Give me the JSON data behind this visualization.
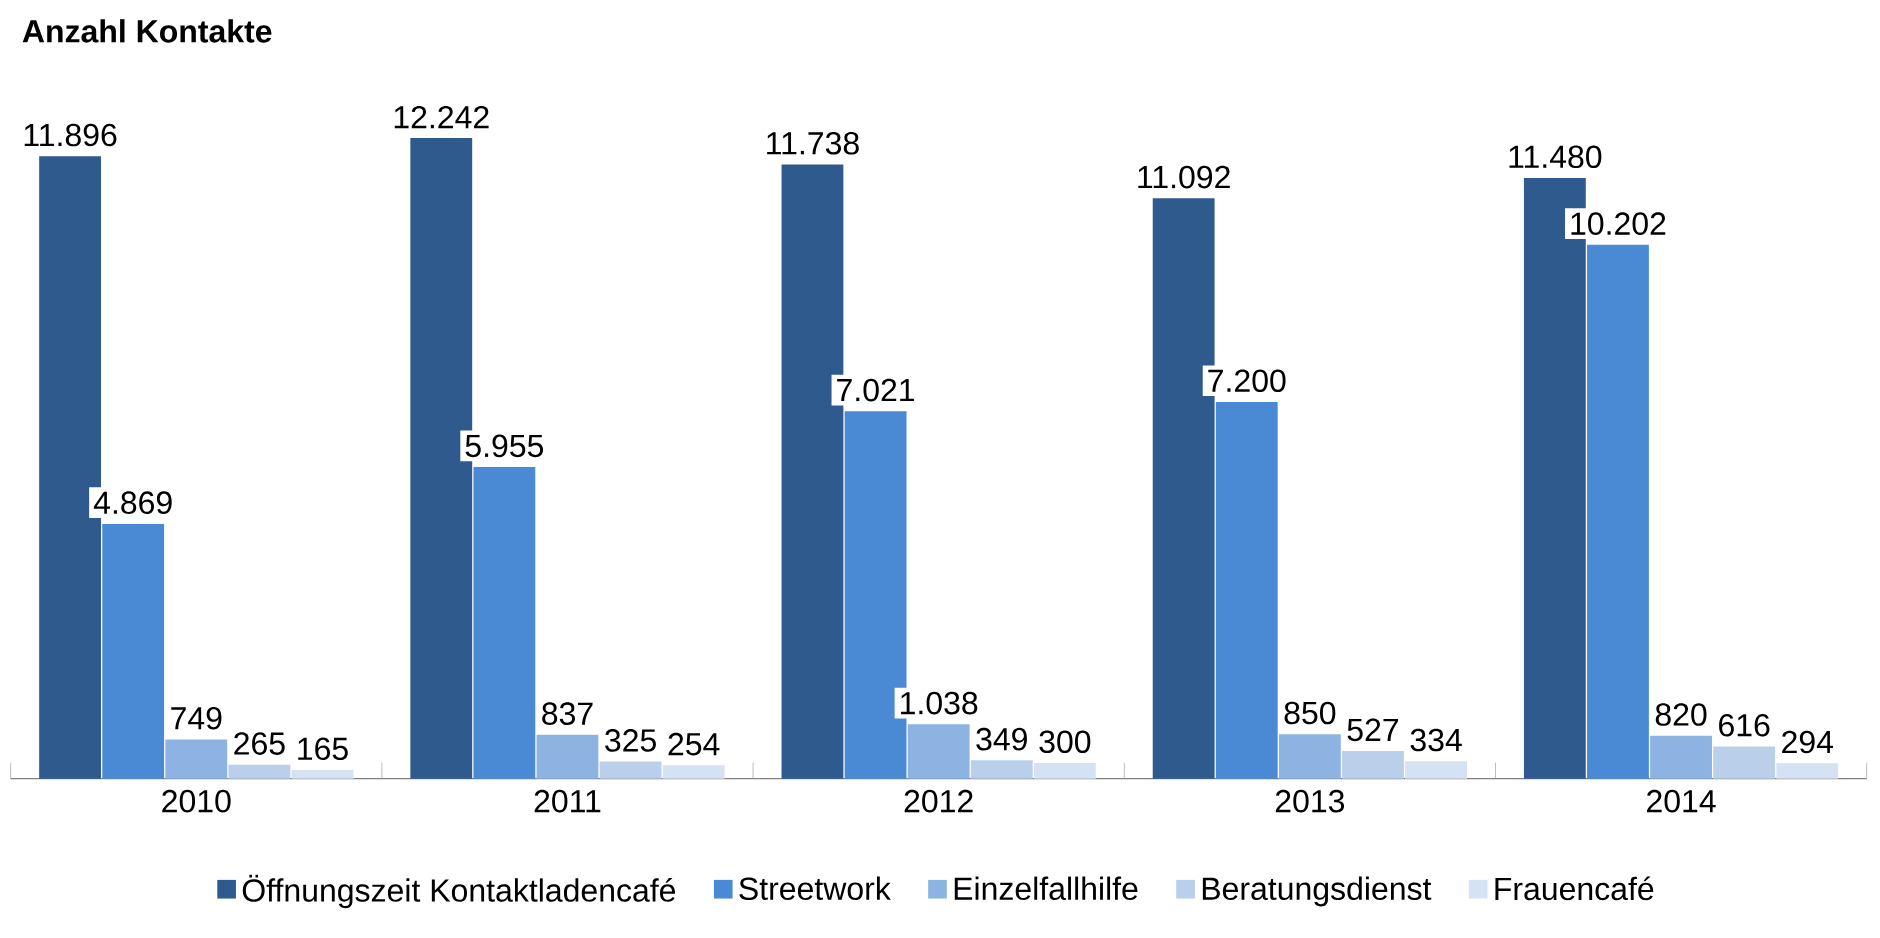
{
  "chart_data": {
    "type": "bar",
    "title": "Anzahl Kontakte",
    "categories": [
      "2010",
      "2011",
      "2012",
      "2013",
      "2014"
    ],
    "series": [
      {
        "name": "Öffnungszeit Kontaktladencafé",
        "color": "#2f5a8e",
        "values": [
          11896,
          12242,
          11738,
          11092,
          11480
        ],
        "value_labels": [
          "11.896",
          "12.242",
          "11.738",
          "11.092",
          "11.480"
        ]
      },
      {
        "name": "Streetwork",
        "color": "#4a89d4",
        "values": [
          4869,
          5955,
          7021,
          7200,
          10202
        ],
        "value_labels": [
          "4.869",
          "5.955",
          "7.021",
          "7.200",
          "10.202"
        ]
      },
      {
        "name": "Einzelfallhilfe",
        "color": "#8db3e2",
        "values": [
          749,
          837,
          1038,
          850,
          820
        ],
        "value_labels": [
          "749",
          "837",
          "1.038",
          "850",
          "820"
        ]
      },
      {
        "name": "Beratungsdienst",
        "color": "#b9cfea",
        "values": [
          265,
          325,
          349,
          527,
          616
        ],
        "value_labels": [
          "265",
          "325",
          "349",
          "527",
          "616"
        ]
      },
      {
        "name": "Frauencafé",
        "color": "#d5e2f3",
        "values": [
          165,
          254,
          300,
          334,
          294
        ],
        "value_labels": [
          "165",
          "254",
          "300",
          "334",
          "294"
        ]
      }
    ],
    "legend": "bottom"
  }
}
